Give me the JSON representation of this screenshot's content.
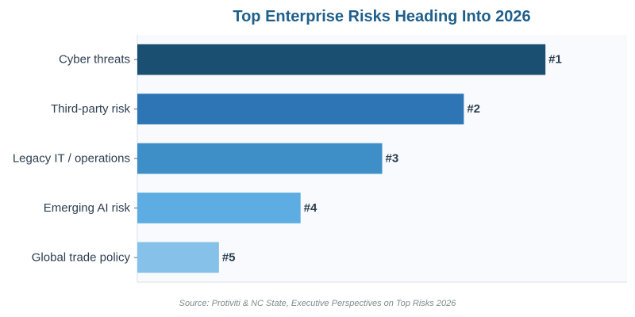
{
  "chart_data": {
    "type": "bar",
    "orientation": "horizontal",
    "title": "Top Enterprise Risks Heading Into 2026",
    "source": "Source: Protiviti & NC State, Executive Perspectives on Top Risks 2026",
    "categories": [
      "Cyber threats",
      "Third-party risk",
      "Legacy IT / operations",
      "Emerging AI risk",
      "Global trade policy"
    ],
    "values": [
      5,
      4,
      3,
      2,
      1
    ],
    "data_labels": [
      "#1",
      "#2",
      "#3",
      "#4",
      "#5"
    ],
    "xlim": [
      0,
      6
    ],
    "x_axis_visible": false,
    "grid": false,
    "legend": "none",
    "bar_colors": [
      "#1b4f72",
      "#2e75b6",
      "#3e8ec8",
      "#5dade2",
      "#85c1e9"
    ]
  },
  "colors": {
    "title": "#1f5f8b",
    "plot_background": "#f8fafd",
    "axis_line": "#d6e2ee"
  }
}
